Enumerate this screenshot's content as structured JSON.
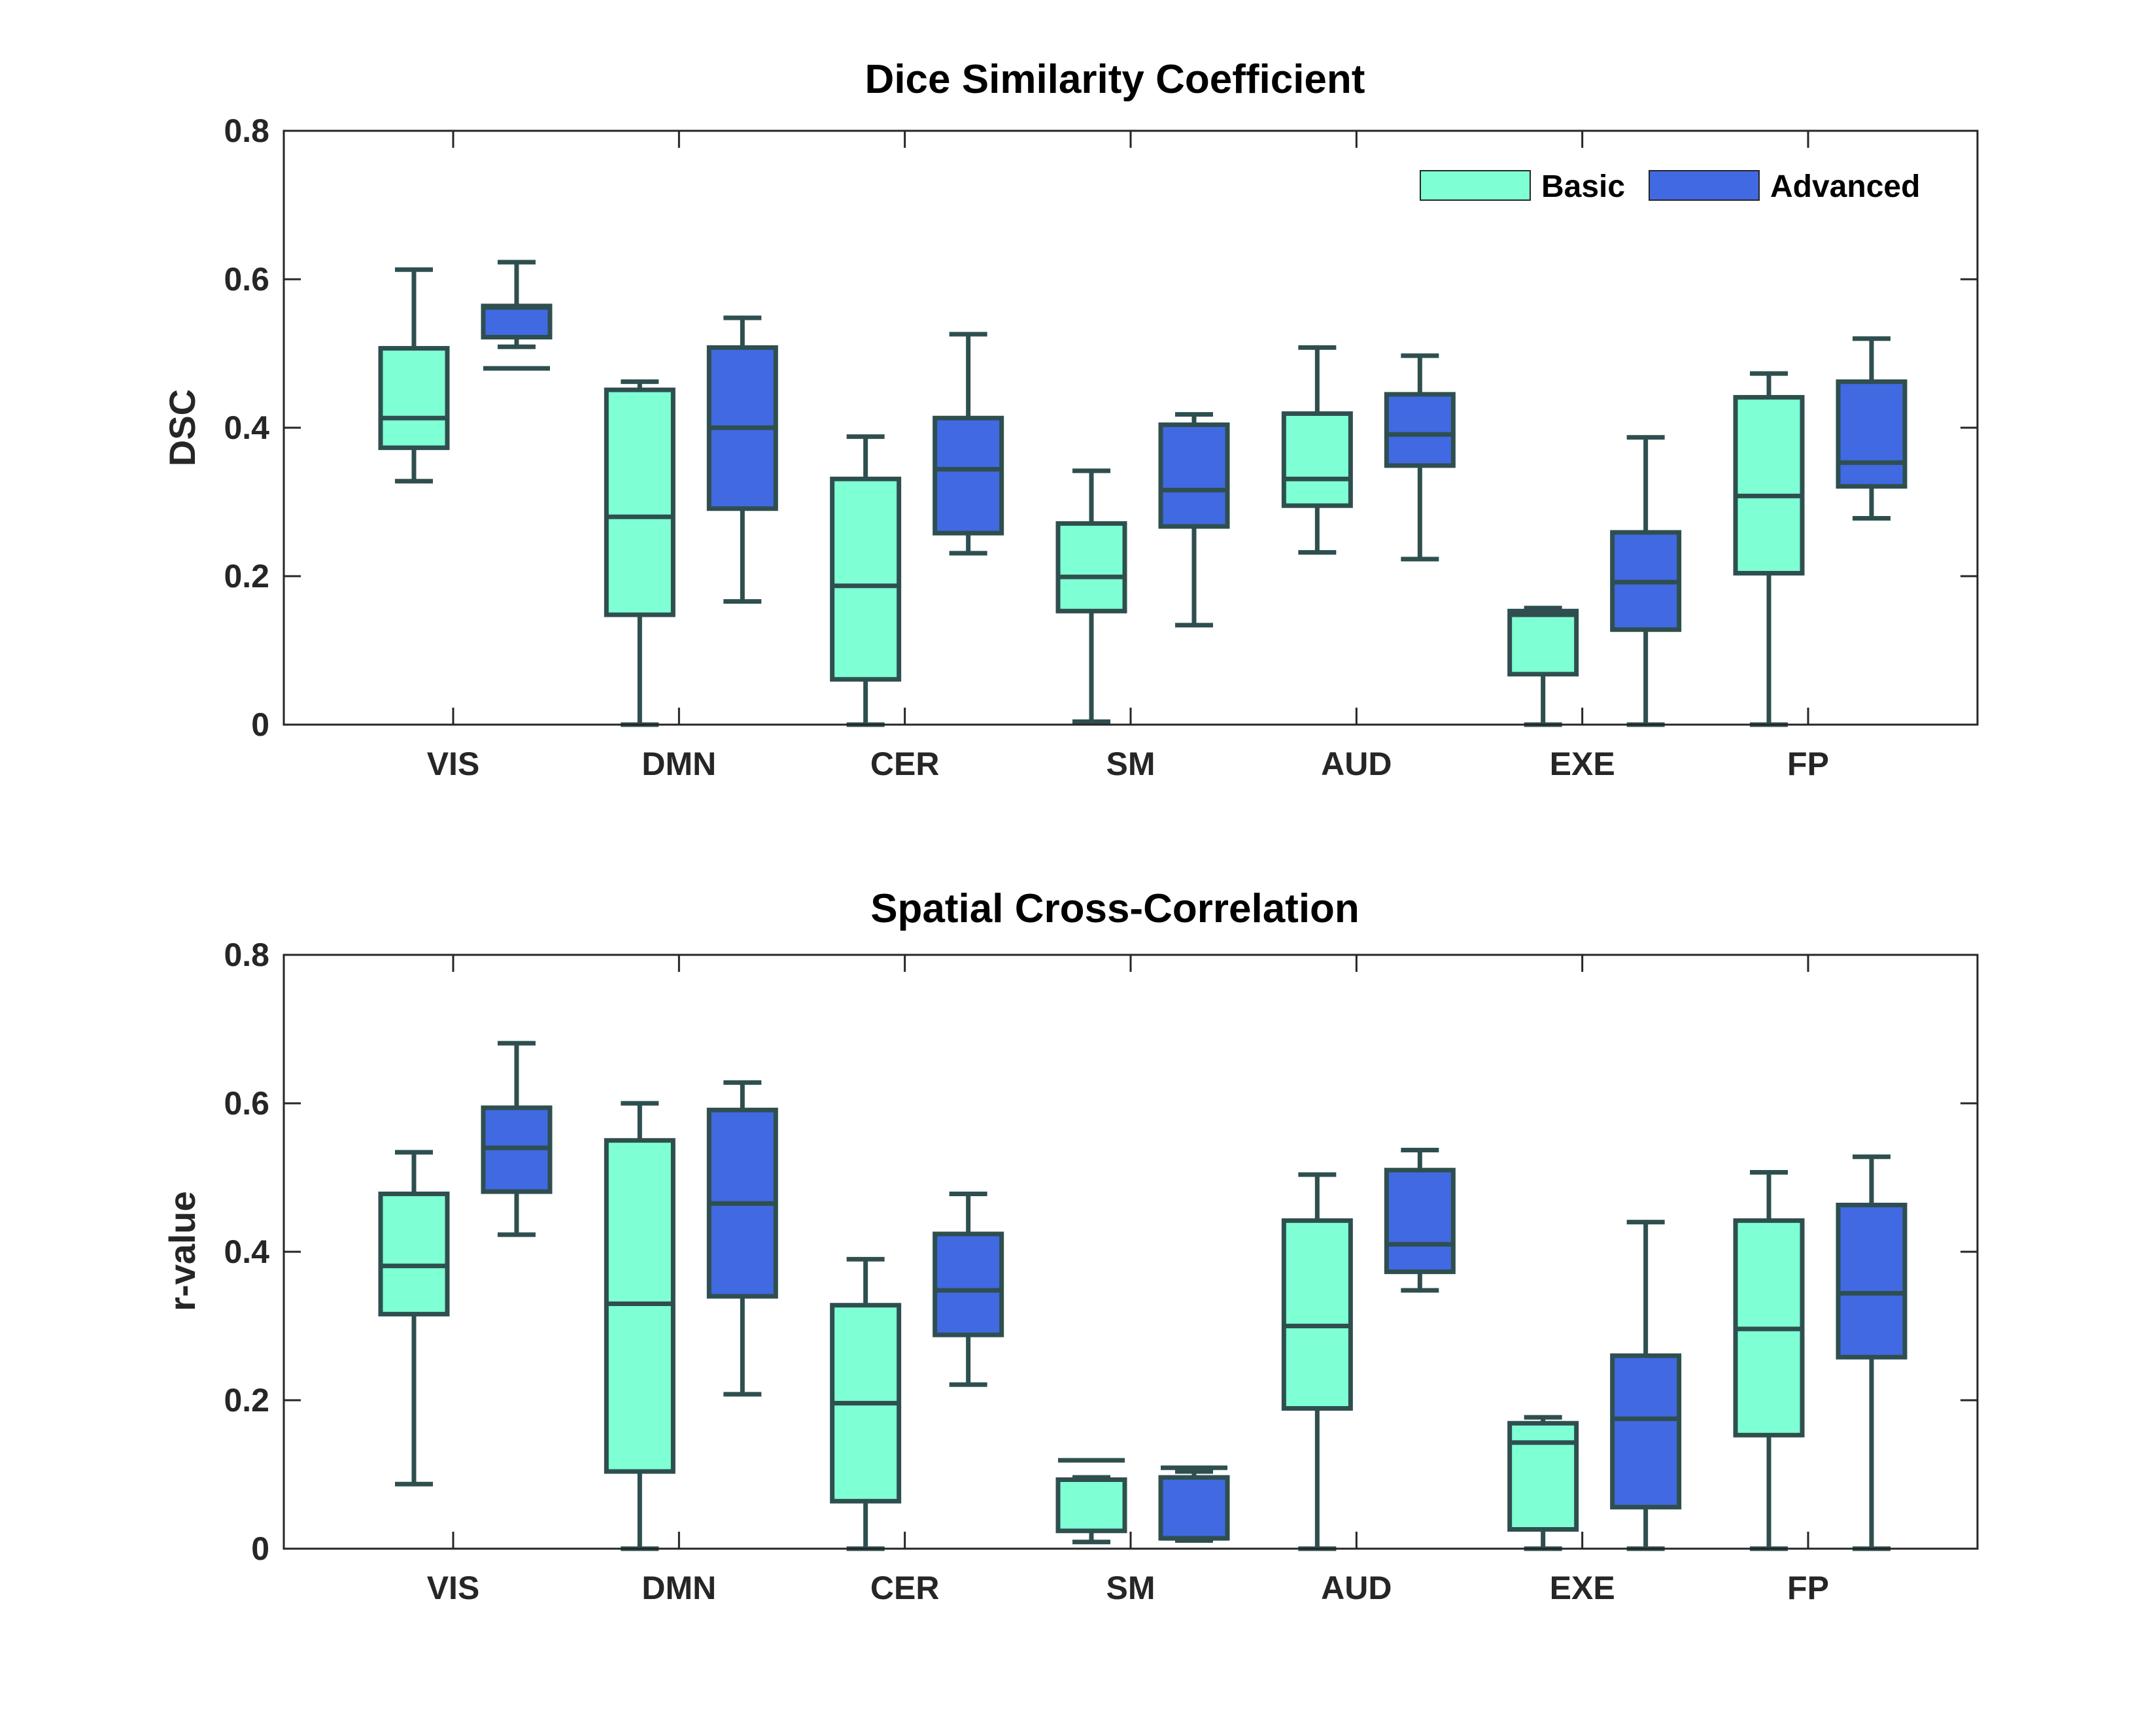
{
  "chart_data": [
    {
      "type": "boxplot",
      "title": "Dice Similarity Coefficient",
      "xlabel": "",
      "ylabel": "DSC",
      "ylim": [
        0,
        0.8
      ],
      "yticks": [
        "0",
        "0.2",
        "0.4",
        "0.6",
        "0.8"
      ],
      "ytick_values": [
        0,
        0.2,
        0.4,
        0.6,
        0.8
      ],
      "categories": [
        "VIS",
        "DMN",
        "CER",
        "SM",
        "AUD",
        "EXE",
        "FP"
      ],
      "legend": {
        "position": "top-right",
        "entries": [
          "Basic",
          "Advanced"
        ]
      },
      "series": [
        {
          "name": "Basic",
          "color": "#7fffd4",
          "boxes": [
            {
              "whisker_low": 0.328,
              "q1": 0.373,
              "median": 0.413,
              "q3": 0.507,
              "whisker_high": 0.613,
              "extra_lines": []
            },
            {
              "whisker_low": 0.0,
              "q1": 0.148,
              "median": 0.28,
              "q3": 0.451,
              "whisker_high": 0.462,
              "extra_lines": []
            },
            {
              "whisker_low": 0.0,
              "q1": 0.061,
              "median": 0.187,
              "q3": 0.331,
              "whisker_high": 0.388,
              "extra_lines": []
            },
            {
              "whisker_low": 0.004,
              "q1": 0.153,
              "median": 0.199,
              "q3": 0.271,
              "whisker_high": 0.342,
              "extra_lines": []
            },
            {
              "whisker_low": 0.232,
              "q1": 0.295,
              "median": 0.331,
              "q3": 0.419,
              "whisker_high": 0.508,
              "extra_lines": []
            },
            {
              "whisker_low": 0.0,
              "q1": 0.068,
              "median": 0.148,
              "q3": 0.153,
              "whisker_high": 0.157,
              "extra_lines": []
            },
            {
              "whisker_low": 0.0,
              "q1": 0.204,
              "median": 0.308,
              "q3": 0.441,
              "whisker_high": 0.473,
              "extra_lines": []
            }
          ]
        },
        {
          "name": "Advanced",
          "color": "#4169e1",
          "boxes": [
            {
              "whisker_low": 0.509,
              "q1": 0.522,
              "median": 0.562,
              "q3": 0.564,
              "whisker_high": 0.623,
              "extra_lines": [
                0.48
              ]
            },
            {
              "whisker_low": 0.166,
              "q1": 0.291,
              "median": 0.4,
              "q3": 0.508,
              "whisker_high": 0.548,
              "extra_lines": []
            },
            {
              "whisker_low": 0.231,
              "q1": 0.258,
              "median": 0.344,
              "q3": 0.413,
              "whisker_high": 0.526,
              "extra_lines": []
            },
            {
              "whisker_low": 0.134,
              "q1": 0.267,
              "median": 0.316,
              "q3": 0.404,
              "whisker_high": 0.418,
              "extra_lines": []
            },
            {
              "whisker_low": 0.223,
              "q1": 0.349,
              "median": 0.391,
              "q3": 0.445,
              "whisker_high": 0.497,
              "extra_lines": []
            },
            {
              "whisker_low": 0.0,
              "q1": 0.128,
              "median": 0.192,
              "q3": 0.259,
              "whisker_high": 0.387,
              "extra_lines": []
            },
            {
              "whisker_low": 0.278,
              "q1": 0.321,
              "median": 0.353,
              "q3": 0.462,
              "whisker_high": 0.52,
              "extra_lines": []
            }
          ]
        }
      ]
    },
    {
      "type": "boxplot",
      "title": "Spatial Cross-Correlation",
      "xlabel": "",
      "ylabel": "r-value",
      "ylim": [
        0,
        0.8
      ],
      "yticks": [
        "0",
        "0.2",
        "0.4",
        "0.6",
        "0.8"
      ],
      "ytick_values": [
        0,
        0.2,
        0.4,
        0.6,
        0.8
      ],
      "categories": [
        "VIS",
        "DMN",
        "CER",
        "SM",
        "AUD",
        "EXE",
        "FP"
      ],
      "series": [
        {
          "name": "Basic",
          "color": "#7fffd4",
          "boxes": [
            {
              "whisker_low": 0.087,
              "q1": 0.316,
              "median": 0.381,
              "q3": 0.478,
              "whisker_high": 0.534,
              "extra_lines": []
            },
            {
              "whisker_low": 0.0,
              "q1": 0.104,
              "median": 0.33,
              "q3": 0.55,
              "whisker_high": 0.6,
              "extra_lines": []
            },
            {
              "whisker_low": 0.0,
              "q1": 0.064,
              "median": 0.196,
              "q3": 0.328,
              "whisker_high": 0.39,
              "extra_lines": []
            },
            {
              "whisker_low": 0.009,
              "q1": 0.024,
              "median": 0.093,
              "q3": 0.093,
              "whisker_high": 0.096,
              "extra_lines": [
                0.119
              ]
            },
            {
              "whisker_low": 0.0,
              "q1": 0.189,
              "median": 0.3,
              "q3": 0.442,
              "whisker_high": 0.504,
              "extra_lines": []
            },
            {
              "whisker_low": 0.0,
              "q1": 0.026,
              "median": 0.143,
              "q3": 0.169,
              "whisker_high": 0.177,
              "extra_lines": []
            },
            {
              "whisker_low": 0.0,
              "q1": 0.153,
              "median": 0.296,
              "q3": 0.442,
              "whisker_high": 0.507,
              "extra_lines": []
            }
          ]
        },
        {
          "name": "Advanced",
          "color": "#4169e1",
          "boxes": [
            {
              "whisker_low": 0.423,
              "q1": 0.481,
              "median": 0.54,
              "q3": 0.594,
              "whisker_high": 0.681,
              "extra_lines": []
            },
            {
              "whisker_low": 0.208,
              "q1": 0.34,
              "median": 0.465,
              "q3": 0.591,
              "whisker_high": 0.628,
              "extra_lines": []
            },
            {
              "whisker_low": 0.221,
              "q1": 0.288,
              "median": 0.348,
              "q3": 0.424,
              "whisker_high": 0.478,
              "extra_lines": []
            },
            {
              "whisker_low": 0.011,
              "q1": 0.014,
              "median": 0.014,
              "q3": 0.096,
              "whisker_high": 0.104,
              "extra_lines": [
                0.109
              ]
            },
            {
              "whisker_low": 0.348,
              "q1": 0.373,
              "median": 0.41,
              "q3": 0.51,
              "whisker_high": 0.537,
              "extra_lines": []
            },
            {
              "whisker_low": 0.0,
              "q1": 0.056,
              "median": 0.175,
              "q3": 0.26,
              "whisker_high": 0.44,
              "extra_lines": []
            },
            {
              "whisker_low": 0.0,
              "q1": 0.258,
              "median": 0.344,
              "q3": 0.463,
              "whisker_high": 0.528,
              "extra_lines": []
            }
          ]
        }
      ]
    }
  ],
  "colors": {
    "box_edge": "#2f4f4f",
    "axis": "#262626",
    "basic_fill": "#7fffd4",
    "advanced_fill": "#4169e1"
  }
}
